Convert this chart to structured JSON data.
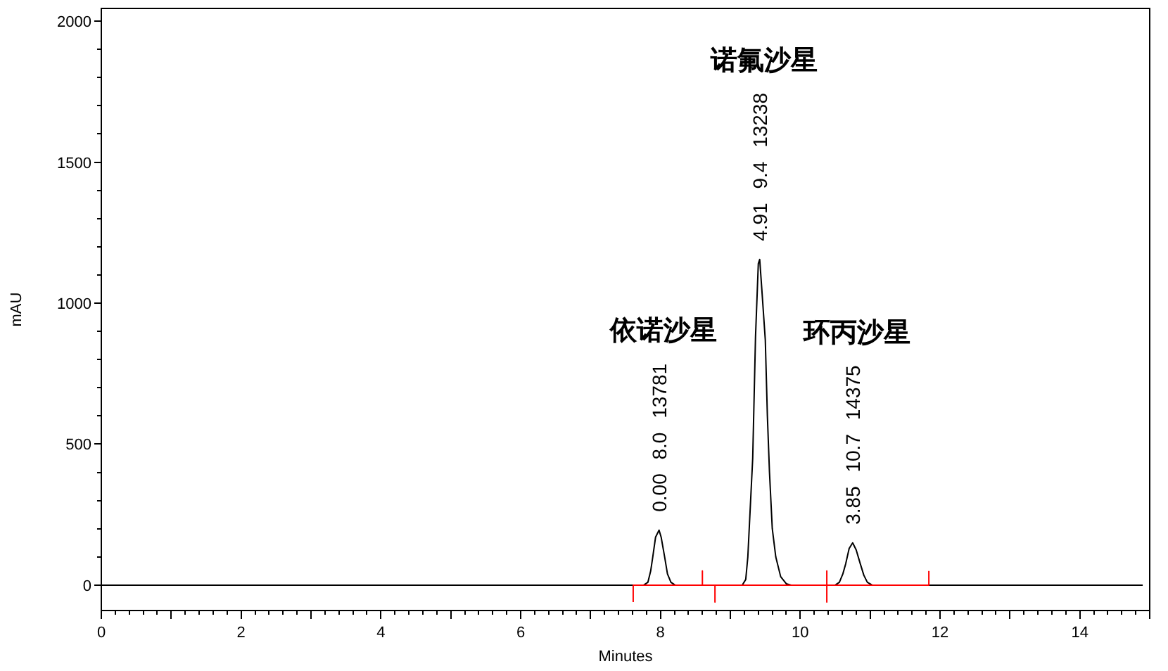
{
  "chart_data": {
    "type": "line",
    "xlabel": "Minutes",
    "ylabel": "mAU",
    "xlim": [
      0,
      15
    ],
    "ylim": [
      -90,
      2045
    ],
    "xticks": [
      0,
      {
        "value": 0.2,
        "label": null
      },
      {
        "value": 0.4,
        "label": null
      },
      {
        "value": 0.6,
        "label": null
      },
      {
        "value": 0.8,
        "label": null
      },
      {
        "value": 1,
        "label": null
      },
      {
        "value": 1.2,
        "label": null
      },
      {
        "value": 1.4,
        "label": null
      },
      {
        "value": 1.6,
        "label": null
      },
      {
        "value": 1.8,
        "label": null
      },
      2,
      {
        "value": 2.2,
        "label": null
      },
      {
        "value": 2.4,
        "label": null
      },
      {
        "value": 2.6,
        "label": null
      },
      {
        "value": 2.8,
        "label": null
      },
      {
        "value": 3,
        "label": null
      },
      {
        "value": 3.2,
        "label": null
      },
      {
        "value": 3.4,
        "label": null
      },
      {
        "value": 3.6,
        "label": null
      },
      {
        "value": 3.8,
        "label": null
      },
      4,
      {
        "value": 4.2,
        "label": null
      },
      {
        "value": 4.4,
        "label": null
      },
      {
        "value": 4.6,
        "label": null
      },
      {
        "value": 4.8,
        "label": null
      },
      {
        "value": 5,
        "label": null
      },
      {
        "value": 5.2,
        "label": null
      },
      {
        "value": 5.4,
        "label": null
      },
      {
        "value": 5.6,
        "label": null
      },
      {
        "value": 5.8,
        "label": null
      },
      6,
      {
        "value": 6.2,
        "label": null
      },
      {
        "value": 6.4,
        "label": null
      },
      {
        "value": 6.6,
        "label": null
      },
      {
        "value": 6.8,
        "label": null
      },
      {
        "value": 7,
        "label": null
      },
      {
        "value": 7.2,
        "label": null
      },
      {
        "value": 7.4,
        "label": null
      },
      {
        "value": 7.6,
        "label": null
      },
      {
        "value": 7.8,
        "label": null
      },
      8,
      {
        "value": 8.2,
        "label": null
      },
      {
        "value": 8.4,
        "label": null
      },
      {
        "value": 8.6,
        "label": null
      },
      {
        "value": 8.8,
        "label": null
      },
      {
        "value": 9,
        "label": null
      },
      {
        "value": 9.2,
        "label": null
      },
      {
        "value": 9.4,
        "label": null
      },
      {
        "value": 9.6,
        "label": null
      },
      {
        "value": 9.8,
        "label": null
      },
      10,
      {
        "value": 10.2,
        "label": null
      },
      {
        "value": 10.4,
        "label": null
      },
      {
        "value": 10.6,
        "label": null
      },
      {
        "value": 10.8,
        "label": null
      },
      {
        "value": 11,
        "label": null
      },
      {
        "value": 11.2,
        "label": null
      },
      {
        "value": 11.4,
        "label": null
      },
      {
        "value": 11.6,
        "label": null
      },
      {
        "value": 11.8,
        "label": null
      },
      12,
      {
        "value": 12.2,
        "label": null
      },
      {
        "value": 12.4,
        "label": null
      },
      {
        "value": 12.6,
        "label": null
      },
      {
        "value": 12.8,
        "label": null
      },
      {
        "value": 13,
        "label": null
      },
      {
        "value": 13.2,
        "label": null
      },
      {
        "value": 13.4,
        "label": null
      },
      {
        "value": 13.6,
        "label": null
      },
      {
        "value": 13.8,
        "label": null
      },
      14,
      {
        "value": 14.2,
        "label": null
      },
      {
        "value": 14.4,
        "label": null
      },
      {
        "value": 14.6,
        "label": null
      },
      {
        "value": 14.8,
        "label": null
      },
      {
        "value": 15,
        "label": null
      }
    ],
    "yticks": [
      0,
      {
        "value": 100,
        "label": null
      },
      {
        "value": 200,
        "label": null
      },
      {
        "value": 300,
        "label": null
      },
      {
        "value": 400,
        "label": null
      },
      500,
      {
        "value": 600,
        "label": null
      },
      {
        "value": 700,
        "label": null
      },
      {
        "value": 800,
        "label": null
      },
      {
        "value": 900,
        "label": null
      },
      1000,
      {
        "value": 1100,
        "label": null
      },
      {
        "value": 1200,
        "label": null
      },
      {
        "value": 1300,
        "label": null
      },
      {
        "value": 1400,
        "label": null
      },
      1500,
      {
        "value": 1600,
        "label": null
      },
      {
        "value": 1700,
        "label": null
      },
      {
        "value": 1800,
        "label": null
      },
      {
        "value": 1900,
        "label": null
      },
      2000
    ],
    "series": [
      {
        "color": "#000000",
        "x": [
          0,
          7.76,
          7.82,
          7.86,
          7.89,
          7.93,
          7.98,
          8.01,
          8.06,
          8.1,
          8.15,
          8.21,
          9.17,
          9.22,
          9.25,
          9.29,
          9.32,
          9.36,
          9.4,
          9.42,
          9.45,
          9.5,
          9.53,
          9.56,
          9.6,
          9.65,
          9.72,
          9.8,
          9.87,
          10.5,
          10.56,
          10.61,
          10.65,
          10.7,
          10.75,
          10.8,
          10.86,
          10.91,
          10.96,
          11.03,
          14.9
        ],
        "values": [
          0,
          0,
          10,
          50,
          100,
          170,
          195,
          170,
          100,
          40,
          10,
          0,
          0,
          20,
          100,
          300,
          450,
          880,
          1140,
          1155,
          1050,
          870,
          600,
          400,
          200,
          100,
          30,
          5,
          0,
          0,
          10,
          40,
          75,
          130,
          150,
          125,
          75,
          35,
          10,
          0,
          0
        ]
      },
      {
        "color": "#ff0000",
        "x": [
          7.61,
          7.61,
          8.6,
          8.6,
          8.6,
          8.78,
          8.78,
          8.78,
          10.38,
          10.38,
          10.38,
          10.38,
          11.84,
          11.84
        ],
        "values": [
          -60,
          0,
          0,
          50,
          0,
          0,
          -60,
          0,
          0,
          50,
          -60,
          0,
          0,
          50
        ]
      }
    ],
    "annotations": [
      "0.00 8.0 13781",
      "4.91 9.4 13238",
      "3.85 10.7 14375",
      "依诺沙星",
      "诺氟沙星",
      "环丙沙星"
    ]
  }
}
